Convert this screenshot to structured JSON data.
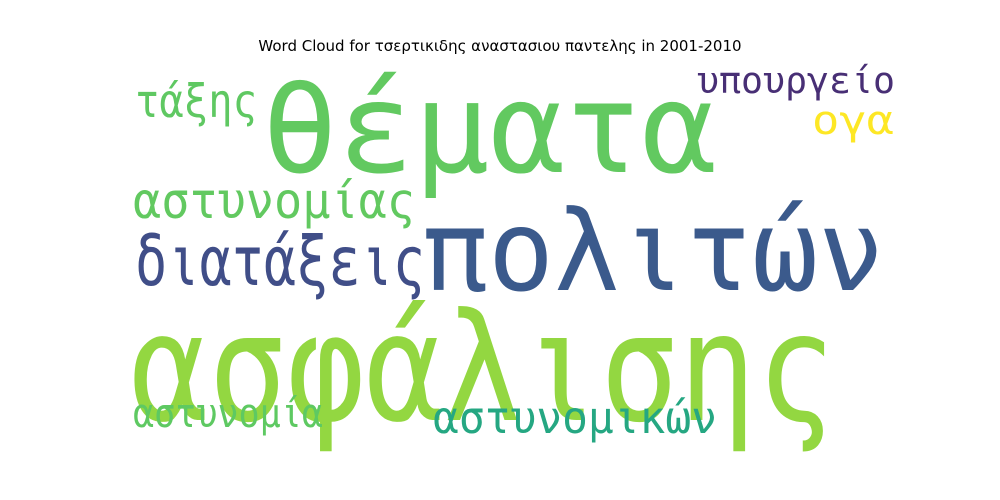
{
  "chart_data": {
    "type": "wordcloud",
    "title": "Word Cloud for τσερτικιδης αναστασιου παντελης in 2001-2010",
    "words": [
      {
        "text": "ασφάλισης",
        "color": "#93d741"
      },
      {
        "text": "πολιτών",
        "color": "#3b5a8c"
      },
      {
        "text": "θέματα",
        "color": "#62c960"
      },
      {
        "text": "διατάξεις",
        "color": "#404e88"
      },
      {
        "text": "αστυνομίας",
        "color": "#62c960"
      },
      {
        "text": "τάξης",
        "color": "#5fc862"
      },
      {
        "text": "υπουργείο",
        "color": "#482f75"
      },
      {
        "text": "ογα",
        "color": "#fde725"
      },
      {
        "text": "αστυνομικών",
        "color": "#25a782"
      },
      {
        "text": "αστυνομία",
        "color": "#5ec962"
      }
    ]
  }
}
